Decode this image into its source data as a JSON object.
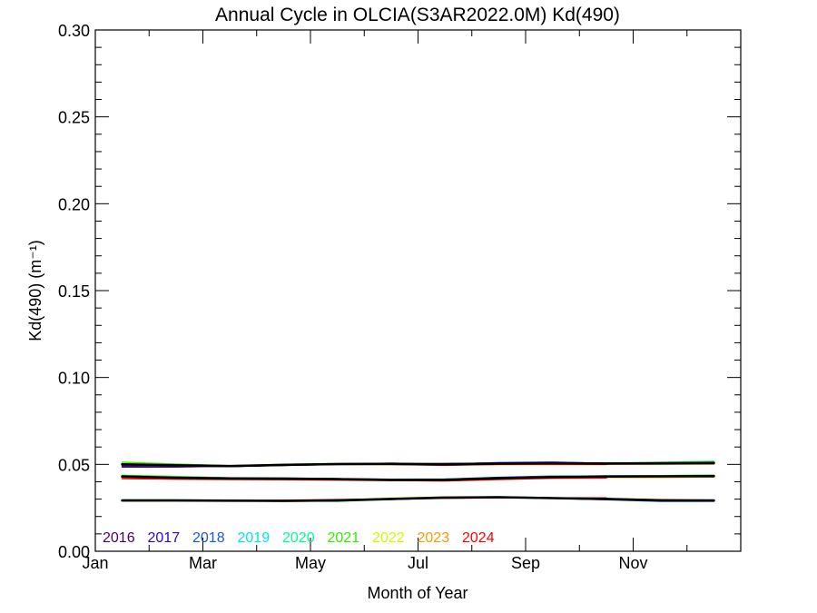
{
  "chart_data": {
    "type": "line",
    "title": "Annual Cycle in OLCIA(S3AR2022.0M) Kd(490)",
    "xlabel": "Month of Year",
    "ylabel": "Kd(490) (m⁻¹)",
    "xlim": [
      0,
      12
    ],
    "ylim": [
      0,
      0.3
    ],
    "x_ticks": [
      {
        "label": "Jan",
        "value": 0
      },
      {
        "label": "Mar",
        "value": 2
      },
      {
        "label": "May",
        "value": 4
      },
      {
        "label": "Jul",
        "value": 6
      },
      {
        "label": "Sep",
        "value": 8
      },
      {
        "label": "Nov",
        "value": 10
      }
    ],
    "y_ticks": [
      "0.00",
      "0.05",
      "0.10",
      "0.15",
      "0.20",
      "0.25",
      "0.30"
    ],
    "y_tick_values": [
      0,
      0.05,
      0.1,
      0.15,
      0.2,
      0.25,
      0.3
    ],
    "x": [
      0.5,
      1.5,
      2.5,
      3.5,
      4.5,
      5.5,
      6.5,
      7.5,
      8.5,
      9.5,
      10.5,
      11.5
    ],
    "legend_position": "bottom-left",
    "series": [
      {
        "name": "2016",
        "color": "#4a0060",
        "group": 1,
        "values": [
          0.0485,
          0.0485,
          0.049,
          0.0497,
          0.05,
          0.0502,
          0.0505,
          0.0507,
          0.0507,
          0.0505,
          0.0502,
          0.0502
        ]
      },
      {
        "name": "2017",
        "color": "#3300cc",
        "group": 1,
        "values": [
          0.0492,
          0.0488,
          0.0488,
          0.0495,
          0.0502,
          0.0505,
          0.0503,
          0.0508,
          0.051,
          0.0507,
          0.0505,
          0.0505
        ]
      },
      {
        "name": "2018",
        "color": "#1a55ee",
        "group": 1,
        "values": [
          0.0497,
          0.0492,
          0.0488,
          0.0495,
          0.05,
          0.0507,
          0.05,
          0.051,
          0.0513,
          0.0505,
          0.0508,
          0.051
        ]
      },
      {
        "name": "2019",
        "color": "#00e0ff",
        "group": 1,
        "values": [
          0.0502,
          0.0497,
          0.049,
          0.0497,
          0.0502,
          0.0502,
          0.05,
          0.0505,
          0.0507,
          0.0507,
          0.051,
          0.0513
        ]
      },
      {
        "name": "2020",
        "color": "#00ff90",
        "group": 1,
        "values": [
          0.0507,
          0.05,
          0.049,
          0.0497,
          0.0502,
          0.0502,
          0.05,
          0.0502,
          0.0505,
          0.0507,
          0.0512,
          0.0517
        ]
      },
      {
        "name": "2021",
        "color": "#30ee00",
        "group": 1,
        "values": [
          0.0512,
          0.0502,
          0.0492,
          0.05,
          0.0505,
          0.05,
          0.0498,
          0.0502,
          0.0505,
          0.0505,
          0.051,
          0.0515
        ]
      },
      {
        "name": "2022",
        "color": "#ccff00",
        "group": 1,
        "values": [
          0.0505,
          0.0498,
          0.049,
          0.0497,
          0.0502,
          0.05,
          0.0497,
          0.05,
          0.0502,
          0.0503,
          0.0505,
          0.0507
        ]
      },
      {
        "name": "2023",
        "color": "#ff9900",
        "group": 1,
        "values": [
          0.05,
          0.0495,
          0.049,
          0.0495,
          0.05,
          0.05,
          0.0496,
          0.05,
          0.05,
          0.05,
          0.05,
          0.0502
        ]
      },
      {
        "name": "2024",
        "color": "#ff0000",
        "group": 1,
        "values": [
          0.0497,
          0.0493,
          0.049,
          0.0495,
          0.05,
          0.05,
          0.0495,
          0.05,
          0.05,
          0.05,
          null,
          null
        ]
      },
      {
        "name": "2016",
        "color": "#4a0060",
        "group": 2,
        "values": [
          0.0425,
          0.042,
          0.0417,
          0.0415,
          0.0412,
          0.041,
          0.041,
          0.042,
          0.0427,
          0.043,
          0.043,
          0.0432
        ]
      },
      {
        "name": "2017",
        "color": "#3300cc",
        "group": 2,
        "values": [
          0.0427,
          0.0422,
          0.0418,
          0.0417,
          0.0415,
          0.0412,
          0.0413,
          0.0423,
          0.043,
          0.0432,
          0.043,
          0.043
        ]
      },
      {
        "name": "2018",
        "color": "#1a55ee",
        "group": 2,
        "values": [
          0.043,
          0.0425,
          0.042,
          0.0418,
          0.0415,
          0.0414,
          0.0415,
          0.0425,
          0.0432,
          0.0433,
          0.0432,
          0.043
        ]
      },
      {
        "name": "2019",
        "color": "#00e0ff",
        "group": 2,
        "values": [
          0.043,
          0.0425,
          0.042,
          0.042,
          0.0417,
          0.0414,
          0.0414,
          0.0422,
          0.043,
          0.0433,
          0.0433,
          0.0433
        ]
      },
      {
        "name": "2020",
        "color": "#00ff90",
        "group": 2,
        "values": [
          0.0435,
          0.0427,
          0.0422,
          0.042,
          0.0417,
          0.0412,
          0.0412,
          0.042,
          0.0428,
          0.0432,
          0.0435,
          0.0437
        ]
      },
      {
        "name": "2021",
        "color": "#30ee00",
        "group": 2,
        "values": [
          0.0437,
          0.043,
          0.0422,
          0.042,
          0.0417,
          0.0412,
          0.041,
          0.0418,
          0.0427,
          0.0432,
          0.0435,
          0.0438
        ]
      },
      {
        "name": "2022",
        "color": "#ccff00",
        "group": 2,
        "values": [
          0.0432,
          0.0427,
          0.042,
          0.0418,
          0.0415,
          0.041,
          0.0408,
          0.0418,
          0.0425,
          0.0428,
          0.043,
          0.043
        ]
      },
      {
        "name": "2023",
        "color": "#ff9900",
        "group": 2,
        "values": [
          0.0422,
          0.0418,
          0.0415,
          0.0415,
          0.0412,
          0.0408,
          0.0405,
          0.0415,
          0.0423,
          0.0425,
          0.0425,
          0.0427
        ]
      },
      {
        "name": "2024",
        "color": "#ff0000",
        "group": 2,
        "values": [
          0.0418,
          0.0415,
          0.0413,
          0.0412,
          0.041,
          0.0407,
          0.0405,
          0.0413,
          0.042,
          0.0422,
          null,
          null
        ]
      },
      {
        "name": "2016",
        "color": "#4a0060",
        "group": 3,
        "values": [
          0.0292,
          0.0292,
          0.0292,
          0.029,
          0.0293,
          0.03,
          0.0308,
          0.031,
          0.0305,
          0.03,
          0.0293,
          0.0292
        ]
      },
      {
        "name": "2017",
        "color": "#3300cc",
        "group": 3,
        "values": [
          0.0292,
          0.0293,
          0.0292,
          0.029,
          0.0292,
          0.0302,
          0.031,
          0.0312,
          0.0307,
          0.0302,
          0.0295,
          0.0293
        ]
      },
      {
        "name": "2018",
        "color": "#1a55ee",
        "group": 3,
        "values": [
          0.029,
          0.0292,
          0.029,
          0.0288,
          0.029,
          0.0302,
          0.0312,
          0.0312,
          0.0305,
          0.0297,
          0.0288,
          0.0288
        ]
      },
      {
        "name": "2019",
        "color": "#00e0ff",
        "group": 3,
        "values": [
          0.0293,
          0.0293,
          0.029,
          0.029,
          0.029,
          0.03,
          0.031,
          0.0313,
          0.0308,
          0.03,
          0.0292,
          0.029
        ]
      },
      {
        "name": "2020",
        "color": "#00ff90",
        "group": 3,
        "values": [
          0.0295,
          0.0295,
          0.0292,
          0.029,
          0.0288,
          0.0298,
          0.0308,
          0.0312,
          0.0307,
          0.0302,
          0.0295,
          0.0293
        ]
      },
      {
        "name": "2021",
        "color": "#30ee00",
        "group": 3,
        "values": [
          0.0293,
          0.0293,
          0.0292,
          0.0288,
          0.029,
          0.03,
          0.031,
          0.0312,
          0.0307,
          0.03,
          0.0292,
          0.0292
        ]
      },
      {
        "name": "2022",
        "color": "#ccff00",
        "group": 3,
        "values": [
          0.029,
          0.0292,
          0.0292,
          0.029,
          0.0295,
          0.0305,
          0.0312,
          0.0312,
          0.0307,
          0.0302,
          0.0295,
          0.0293
        ]
      },
      {
        "name": "2023",
        "color": "#ff9900",
        "group": 3,
        "values": [
          0.029,
          0.029,
          0.029,
          0.029,
          0.0292,
          0.03,
          0.0308,
          0.031,
          0.0305,
          0.0302,
          0.0297,
          0.0293
        ]
      },
      {
        "name": "2024",
        "color": "#ff0000",
        "group": 3,
        "values": [
          0.0293,
          0.0292,
          0.029,
          0.0293,
          0.0297,
          0.03,
          0.0305,
          0.0308,
          0.0307,
          0.0307,
          null,
          null
        ]
      }
    ],
    "climatology": [
      {
        "name": "",
        "color": "#000000",
        "group": 1,
        "values": [
          0.05,
          0.0495,
          0.049,
          0.0497,
          0.0502,
          0.0503,
          0.05,
          0.0505,
          0.0507,
          0.0505,
          0.0506,
          0.0508
        ]
      },
      {
        "name": "",
        "color": "#000000",
        "group": 2,
        "values": [
          0.043,
          0.0423,
          0.0419,
          0.0418,
          0.0415,
          0.0411,
          0.0411,
          0.042,
          0.0427,
          0.043,
          0.0431,
          0.0432
        ]
      },
      {
        "name": "",
        "color": "#000000",
        "group": 3,
        "values": [
          0.0292,
          0.0292,
          0.0291,
          0.029,
          0.0292,
          0.0301,
          0.0309,
          0.0311,
          0.0306,
          0.0301,
          0.0293,
          0.0292
        ]
      }
    ],
    "grid": false
  }
}
